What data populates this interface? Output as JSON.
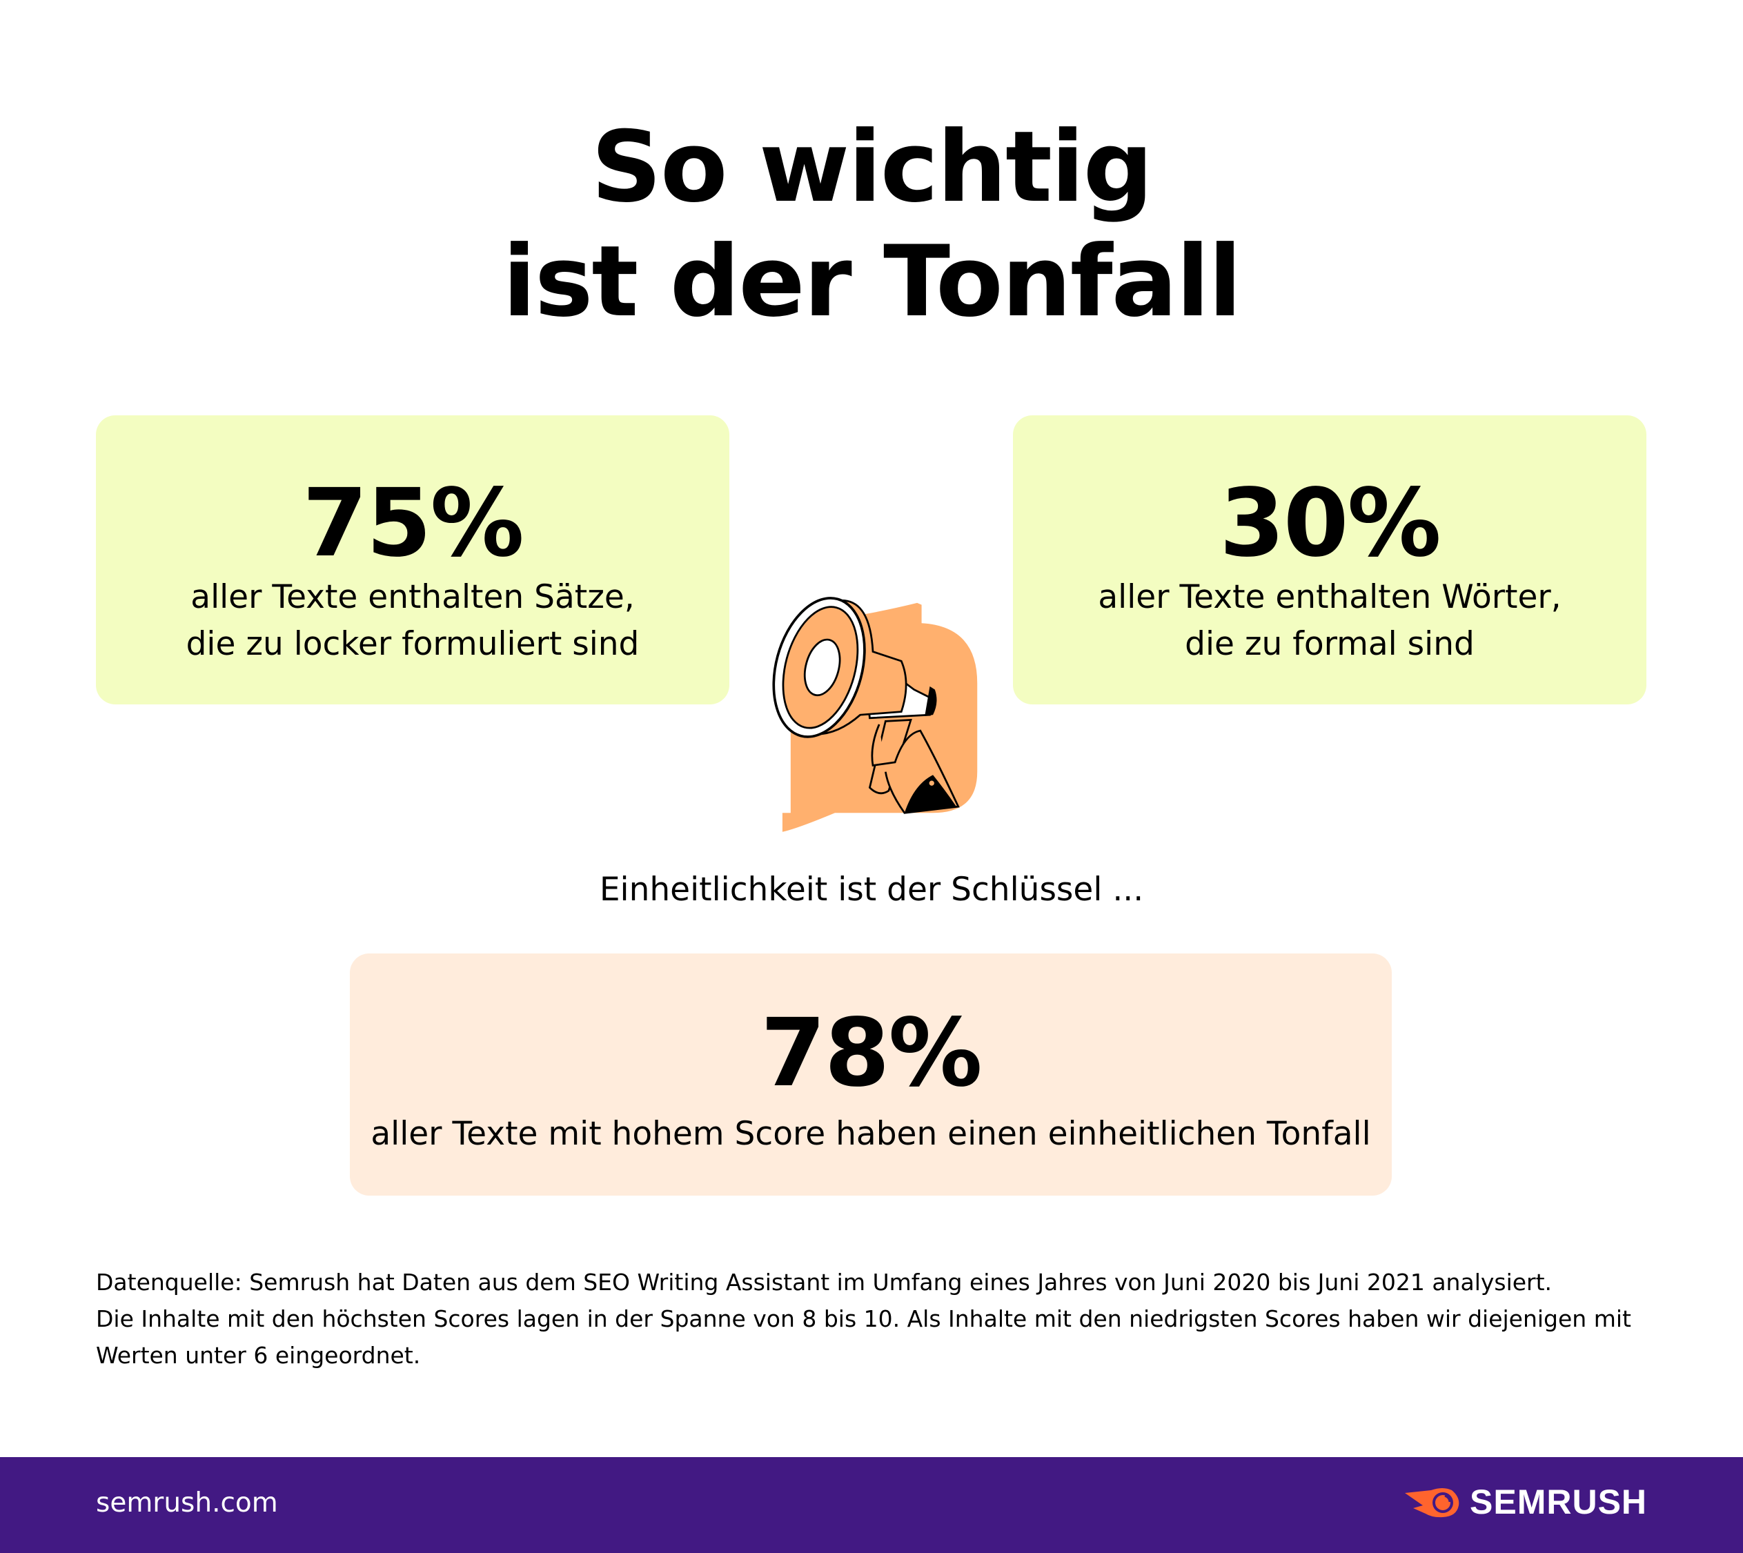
{
  "title": {
    "line1": "So wichtig",
    "line2": "ist der Tonfall"
  },
  "stats": [
    {
      "value": "75%",
      "line1": "aller Texte enthalten Sätze,",
      "line2": "die zu locker formuliert sind"
    },
    {
      "value": "30%",
      "line1": "aller Texte enthalten Wörter,",
      "line2": "die zu formal sind"
    },
    {
      "value": "78%",
      "line1": "aller Texte mit hohem Score haben einen einheitlichen Tonfall"
    }
  ],
  "intro": "Einheitlichkeit ist der Schlüssel ...",
  "note": {
    "line1": "Datenquelle: Semrush hat Daten aus dem SEO Writing Assistant im Umfang eines Jahres von Juni 2020 bis Juni 2021 analysiert.",
    "line2": "Die Inhalte mit den höchsten Scores lagen in der Spanne von 8 bis 10. Als Inhalte mit den niedrigsten Scores haben wir diejenigen mit Werten unter 6 eingeordnet."
  },
  "footer": {
    "site": "semrush.com",
    "logo": "SEMRUSH"
  },
  "colors": {
    "green_box": "#f3fdc1",
    "peach_box": "#ffecdc",
    "illustration": "#ffb06e",
    "footer": "#421983",
    "logo_orange": "#ff642d"
  },
  "icons": {
    "illustration": "megaphone-in-hand",
    "logo": "semrush-fireball"
  }
}
